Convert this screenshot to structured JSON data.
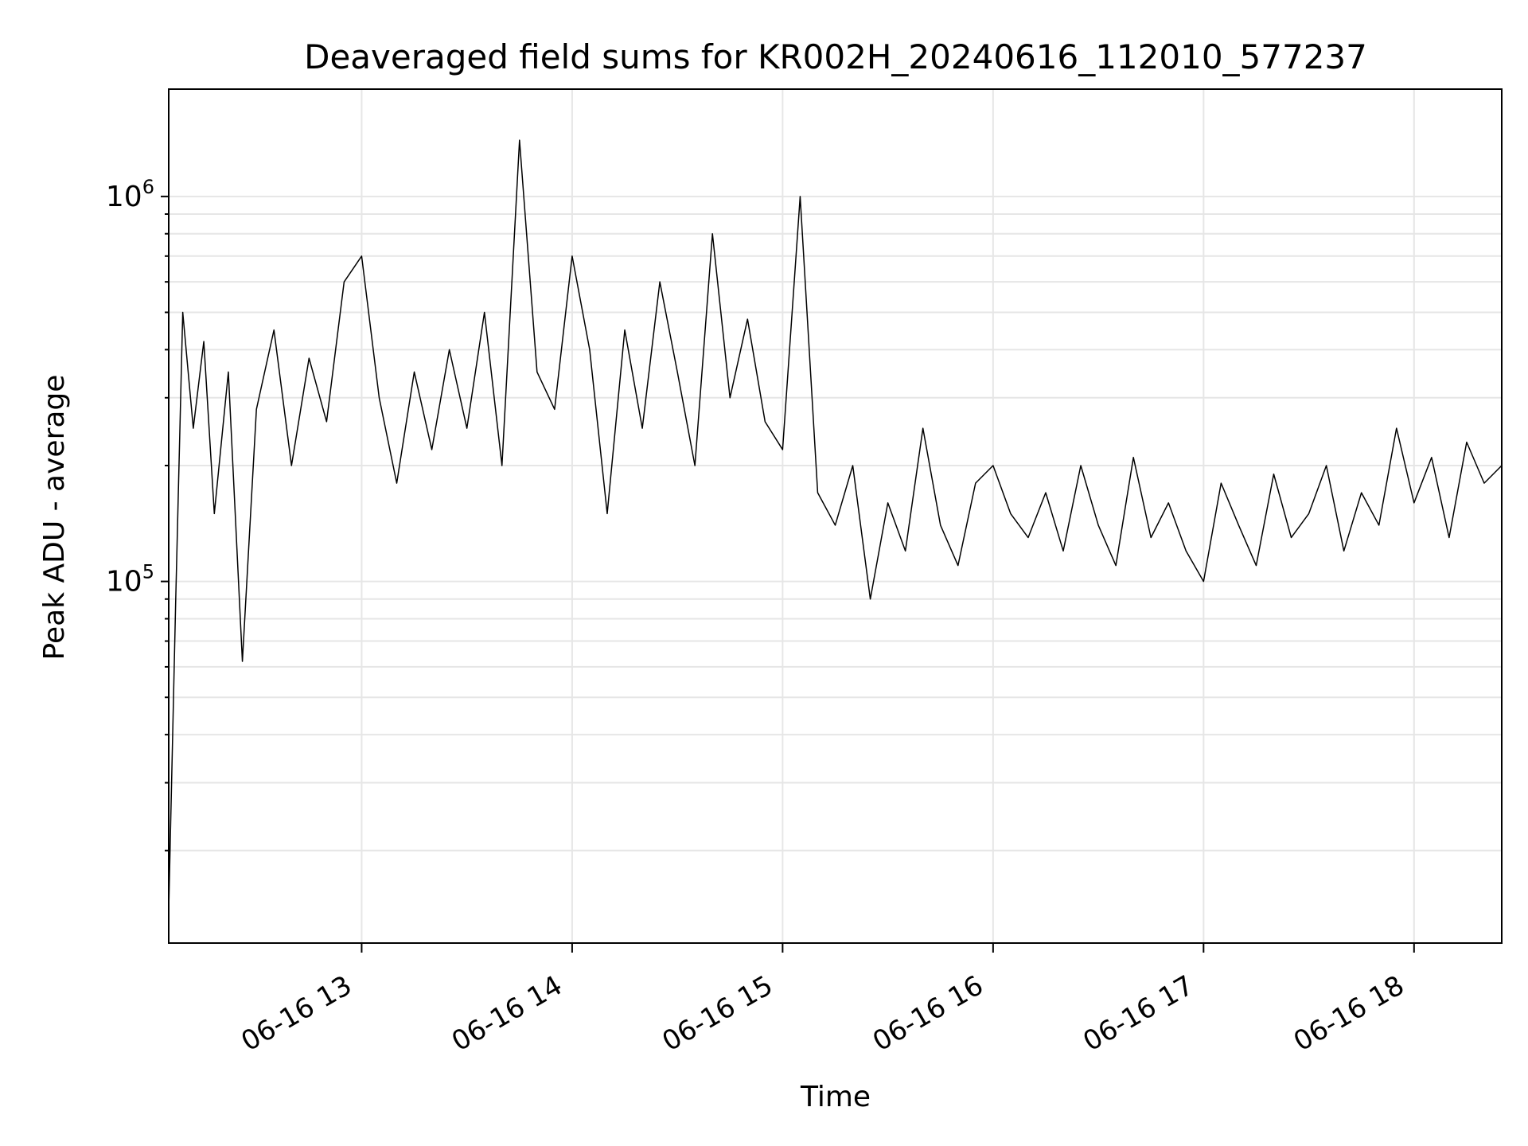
{
  "chart_data": {
    "type": "line",
    "title": "Deaveraged field sums for KR002H_20240616_112010_577237",
    "xlabel": "Time",
    "ylabel": "Peak ADU - average",
    "y_scale": "log",
    "xlim": [
      "2024-06-16 12:05",
      "2024-06-16 18:25"
    ],
    "ylim": [
      11500,
      1900000
    ],
    "x_ticks": [
      {
        "value": "2024-06-16 13:00",
        "label": "06-16 13"
      },
      {
        "value": "2024-06-16 14:00",
        "label": "06-16 14"
      },
      {
        "value": "2024-06-16 15:00",
        "label": "06-16 15"
      },
      {
        "value": "2024-06-16 16:00",
        "label": "06-16 16"
      },
      {
        "value": "2024-06-16 17:00",
        "label": "06-16 17"
      },
      {
        "value": "2024-06-16 18:00",
        "label": "06-16 18"
      }
    ],
    "y_major_ticks": [
      {
        "value": 100000,
        "label_base": "10",
        "label_exp": "5"
      },
      {
        "value": 1000000,
        "label_base": "10",
        "label_exp": "6"
      }
    ],
    "grid": true,
    "legend": "none",
    "line_color": "#000000",
    "series": [
      {
        "x": [
          "2024-06-16 12:05",
          "2024-06-16 12:07",
          "2024-06-16 12:09",
          "2024-06-16 12:12",
          "2024-06-16 12:15",
          "2024-06-16 12:18",
          "2024-06-16 12:22",
          "2024-06-16 12:26",
          "2024-06-16 12:30",
          "2024-06-16 12:35",
          "2024-06-16 12:40",
          "2024-06-16 12:45",
          "2024-06-16 12:50",
          "2024-06-16 12:55",
          "2024-06-16 13:00",
          "2024-06-16 13:05",
          "2024-06-16 13:10",
          "2024-06-16 13:15",
          "2024-06-16 13:20",
          "2024-06-16 13:25",
          "2024-06-16 13:30",
          "2024-06-16 13:35",
          "2024-06-16 13:40",
          "2024-06-16 13:45",
          "2024-06-16 13:50",
          "2024-06-16 13:55",
          "2024-06-16 14:00",
          "2024-06-16 14:05",
          "2024-06-16 14:10",
          "2024-06-16 14:15",
          "2024-06-16 14:20",
          "2024-06-16 14:25",
          "2024-06-16 14:30",
          "2024-06-16 14:35",
          "2024-06-16 14:40",
          "2024-06-16 14:45",
          "2024-06-16 14:50",
          "2024-06-16 14:55",
          "2024-06-16 15:00",
          "2024-06-16 15:05",
          "2024-06-16 15:10",
          "2024-06-16 15:15",
          "2024-06-16 15:20",
          "2024-06-16 15:25",
          "2024-06-16 15:30",
          "2024-06-16 15:35",
          "2024-06-16 15:40",
          "2024-06-16 15:45",
          "2024-06-16 15:50",
          "2024-06-16 15:55",
          "2024-06-16 16:00",
          "2024-06-16 16:05",
          "2024-06-16 16:10",
          "2024-06-16 16:15",
          "2024-06-16 16:20",
          "2024-06-16 16:25",
          "2024-06-16 16:30",
          "2024-06-16 16:35",
          "2024-06-16 16:40",
          "2024-06-16 16:45",
          "2024-06-16 16:50",
          "2024-06-16 16:55",
          "2024-06-16 17:00",
          "2024-06-16 17:05",
          "2024-06-16 17:10",
          "2024-06-16 17:15",
          "2024-06-16 17:20",
          "2024-06-16 17:25",
          "2024-06-16 17:30",
          "2024-06-16 17:35",
          "2024-06-16 17:40",
          "2024-06-16 17:45",
          "2024-06-16 17:50",
          "2024-06-16 17:55",
          "2024-06-16 18:00",
          "2024-06-16 18:05",
          "2024-06-16 18:10",
          "2024-06-16 18:15",
          "2024-06-16 18:20",
          "2024-06-16 18:25"
        ],
        "values": [
          14000,
          90000,
          500000,
          250000,
          420000,
          150000,
          350000,
          62000,
          280000,
          450000,
          200000,
          380000,
          260000,
          600000,
          700000,
          300000,
          180000,
          350000,
          220000,
          400000,
          250000,
          500000,
          200000,
          1400000,
          350000,
          280000,
          700000,
          400000,
          150000,
          450000,
          250000,
          600000,
          350000,
          200000,
          800000,
          300000,
          480000,
          260000,
          220000,
          1000000,
          170000,
          140000,
          200000,
          90000,
          160000,
          120000,
          250000,
          140000,
          110000,
          180000,
          200000,
          150000,
          130000,
          170000,
          120000,
          200000,
          140000,
          110000,
          210000,
          130000,
          160000,
          120000,
          100000,
          180000,
          140000,
          110000,
          190000,
          130000,
          150000,
          200000,
          120000,
          170000,
          140000,
          250000,
          160000,
          210000,
          130000,
          230000,
          180000,
          200000
        ]
      }
    ]
  }
}
